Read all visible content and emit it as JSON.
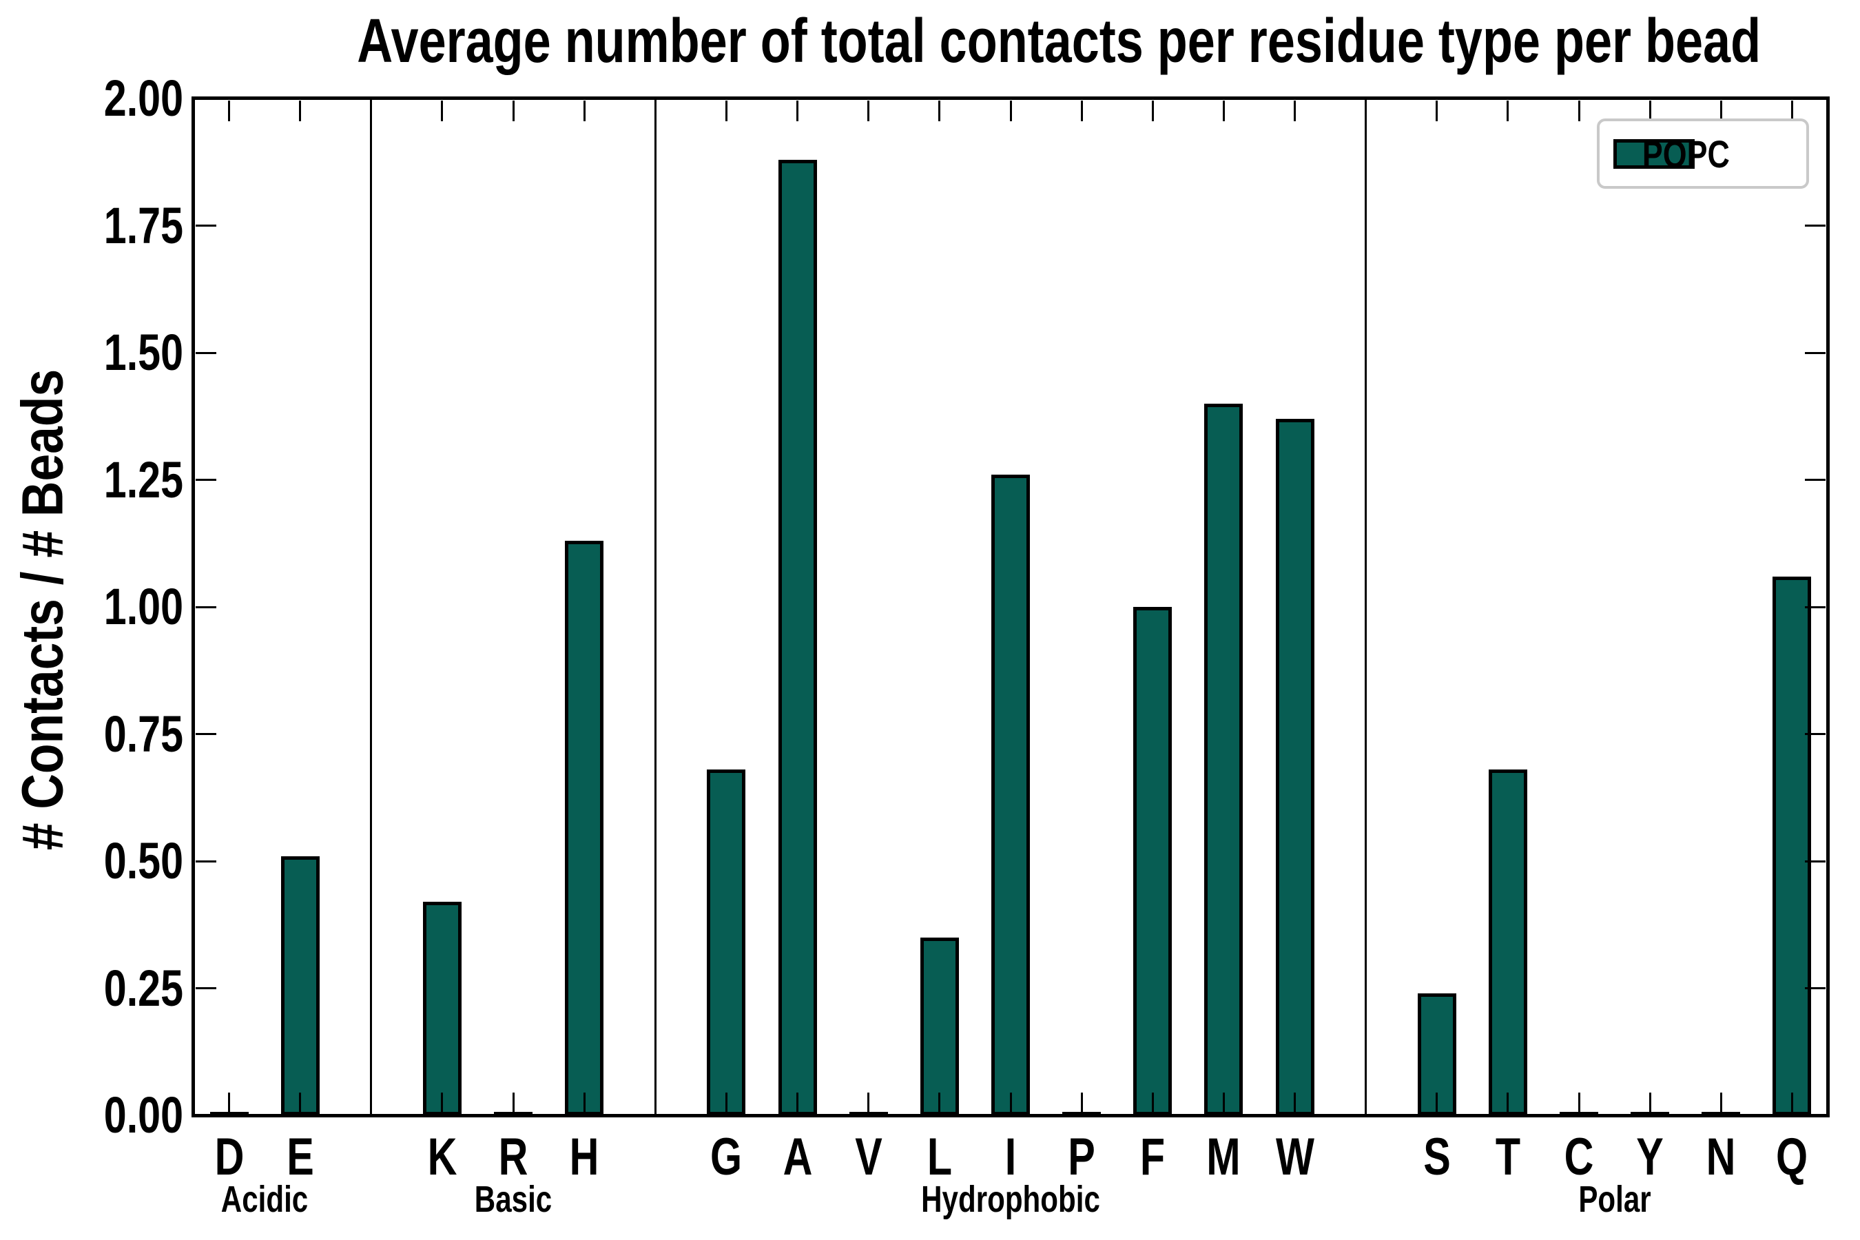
{
  "figure": {
    "title": "Average number of total contacts per residue type per bead",
    "ylabel": "# Contacts / # Beads"
  },
  "legend": {
    "label": "POPC",
    "swatch_color": "#075D53",
    "border_color": "#c9c9c9"
  },
  "chart_data": {
    "type": "bar",
    "title": "Average number of total contacts per residue type per bead",
    "xlabel": "",
    "ylabel": "# Contacts / # Beads",
    "ylim": [
      0.0,
      2.0
    ],
    "ytick_step": 0.25,
    "ytick_labels": [
      "0.00",
      "0.25",
      "0.50",
      "0.75",
      "1.00",
      "1.25",
      "1.50",
      "1.75",
      "2.00"
    ],
    "grid": false,
    "legend_position": "upper right",
    "bar_color": "#075D53",
    "bar_edge_color": "#000000",
    "groups": [
      {
        "name": "Acidic",
        "categories": [
          "D",
          "E"
        ],
        "values": [
          0.0,
          0.51
        ]
      },
      {
        "name": "Basic",
        "categories": [
          "K",
          "R",
          "H"
        ],
        "values": [
          0.42,
          0.0,
          1.13
        ]
      },
      {
        "name": "Hydrophobic",
        "categories": [
          "G",
          "A",
          "V",
          "L",
          "I",
          "P",
          "F",
          "M",
          "W"
        ],
        "values": [
          0.68,
          1.88,
          0.0,
          0.35,
          1.26,
          0.0,
          1.0,
          1.4,
          1.37
        ]
      },
      {
        "name": "Polar",
        "categories": [
          "S",
          "T",
          "C",
          "Y",
          "N",
          "Q"
        ],
        "values": [
          0.24,
          0.68,
          0.0,
          0.0,
          0.0,
          1.06
        ]
      }
    ],
    "series": [
      {
        "name": "POPC",
        "values": [
          0.0,
          0.51,
          0.42,
          0.0,
          1.13,
          0.68,
          1.88,
          0.0,
          0.35,
          1.26,
          0.0,
          1.0,
          1.4,
          1.37,
          0.24,
          0.68,
          0.0,
          0.0,
          0.0,
          1.06
        ]
      }
    ]
  }
}
